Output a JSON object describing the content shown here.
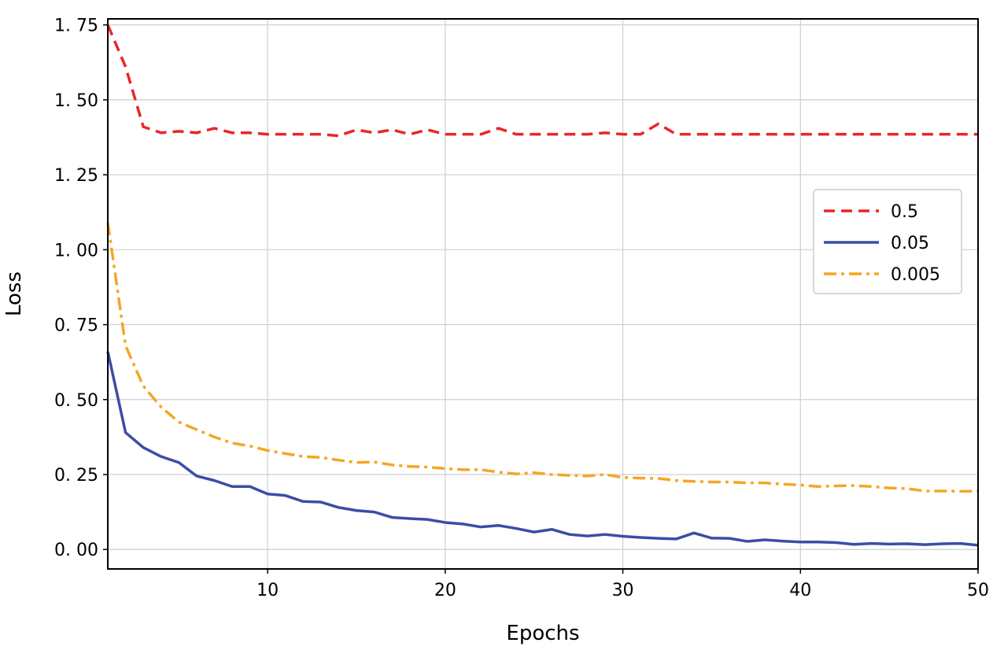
{
  "chart_data": {
    "type": "line",
    "xlabel": "Epochs",
    "ylabel": "Loss",
    "xlim": [
      1,
      50
    ],
    "ylim": [
      -0.065,
      1.77
    ],
    "xticks": [
      10,
      20,
      30,
      40,
      50
    ],
    "xtick_labels": [
      "10",
      "20",
      "30",
      "40",
      "50"
    ],
    "yticks": [
      0.0,
      0.25,
      0.5,
      0.75,
      1.0,
      1.25,
      1.5,
      1.75
    ],
    "ytick_labels": [
      "0. 00",
      "0. 25",
      "0. 50",
      "0. 75",
      "1. 00",
      "1. 25",
      "1. 50",
      "1. 75"
    ],
    "grid": true,
    "legend_position": "center-right",
    "series": [
      {
        "name": "0.5",
        "color": "#e8262b",
        "style": "dashed",
        "x": [
          1,
          2,
          3,
          4,
          5,
          6,
          7,
          8,
          9,
          10,
          11,
          12,
          13,
          14,
          15,
          16,
          17,
          18,
          19,
          20,
          21,
          22,
          23,
          24,
          25,
          26,
          27,
          28,
          29,
          30,
          31,
          32,
          33,
          34,
          35,
          36,
          37,
          38,
          39,
          40,
          41,
          42,
          43,
          44,
          45,
          46,
          47,
          48,
          49,
          50
        ],
        "values": [
          1.75,
          1.61,
          1.41,
          1.39,
          1.395,
          1.39,
          1.405,
          1.39,
          1.39,
          1.385,
          1.385,
          1.385,
          1.385,
          1.38,
          1.4,
          1.39,
          1.4,
          1.385,
          1.4,
          1.385,
          1.385,
          1.385,
          1.405,
          1.385,
          1.385,
          1.385,
          1.385,
          1.385,
          1.39,
          1.385,
          1.385,
          1.42,
          1.385,
          1.385,
          1.385,
          1.385,
          1.385,
          1.385,
          1.385,
          1.385,
          1.385,
          1.385,
          1.385,
          1.385,
          1.385,
          1.385,
          1.385,
          1.385,
          1.385,
          1.385
        ]
      },
      {
        "name": "0.05",
        "color": "#3b4da8",
        "style": "solid",
        "x": [
          1,
          2,
          3,
          4,
          5,
          6,
          7,
          8,
          9,
          10,
          11,
          12,
          13,
          14,
          15,
          16,
          17,
          18,
          19,
          20,
          21,
          22,
          23,
          24,
          25,
          26,
          27,
          28,
          29,
          30,
          31,
          32,
          33,
          34,
          35,
          36,
          37,
          38,
          39,
          40,
          41,
          42,
          43,
          44,
          45,
          46,
          47,
          48,
          49,
          50
        ],
        "values": [
          0.66,
          0.39,
          0.34,
          0.31,
          0.29,
          0.245,
          0.23,
          0.21,
          0.21,
          0.185,
          0.18,
          0.16,
          0.158,
          0.14,
          0.13,
          0.125,
          0.107,
          0.103,
          0.1,
          0.09,
          0.085,
          0.075,
          0.08,
          0.07,
          0.058,
          0.067,
          0.05,
          0.045,
          0.05,
          0.044,
          0.04,
          0.037,
          0.035,
          0.055,
          0.038,
          0.037,
          0.027,
          0.032,
          0.028,
          0.025,
          0.025,
          0.023,
          0.017,
          0.02,
          0.018,
          0.019,
          0.016,
          0.019,
          0.02,
          0.014
        ]
      },
      {
        "name": "0.005",
        "color": "#f5a623",
        "style": "dashdot",
        "x": [
          1,
          2,
          3,
          4,
          5,
          6,
          7,
          8,
          9,
          10,
          11,
          12,
          13,
          14,
          15,
          16,
          17,
          18,
          19,
          20,
          21,
          22,
          23,
          24,
          25,
          26,
          27,
          28,
          29,
          30,
          31,
          32,
          33,
          34,
          35,
          36,
          37,
          38,
          39,
          40,
          41,
          42,
          43,
          44,
          45,
          46,
          47,
          48,
          49,
          50
        ],
        "values": [
          1.09,
          0.68,
          0.545,
          0.475,
          0.425,
          0.4,
          0.375,
          0.355,
          0.345,
          0.33,
          0.32,
          0.31,
          0.307,
          0.298,
          0.29,
          0.292,
          0.282,
          0.277,
          0.275,
          0.27,
          0.266,
          0.266,
          0.258,
          0.252,
          0.256,
          0.25,
          0.247,
          0.245,
          0.25,
          0.24,
          0.238,
          0.237,
          0.23,
          0.227,
          0.225,
          0.225,
          0.222,
          0.222,
          0.218,
          0.215,
          0.21,
          0.212,
          0.213,
          0.21,
          0.205,
          0.203,
          0.195,
          0.195,
          0.194,
          0.195
        ]
      }
    ]
  }
}
